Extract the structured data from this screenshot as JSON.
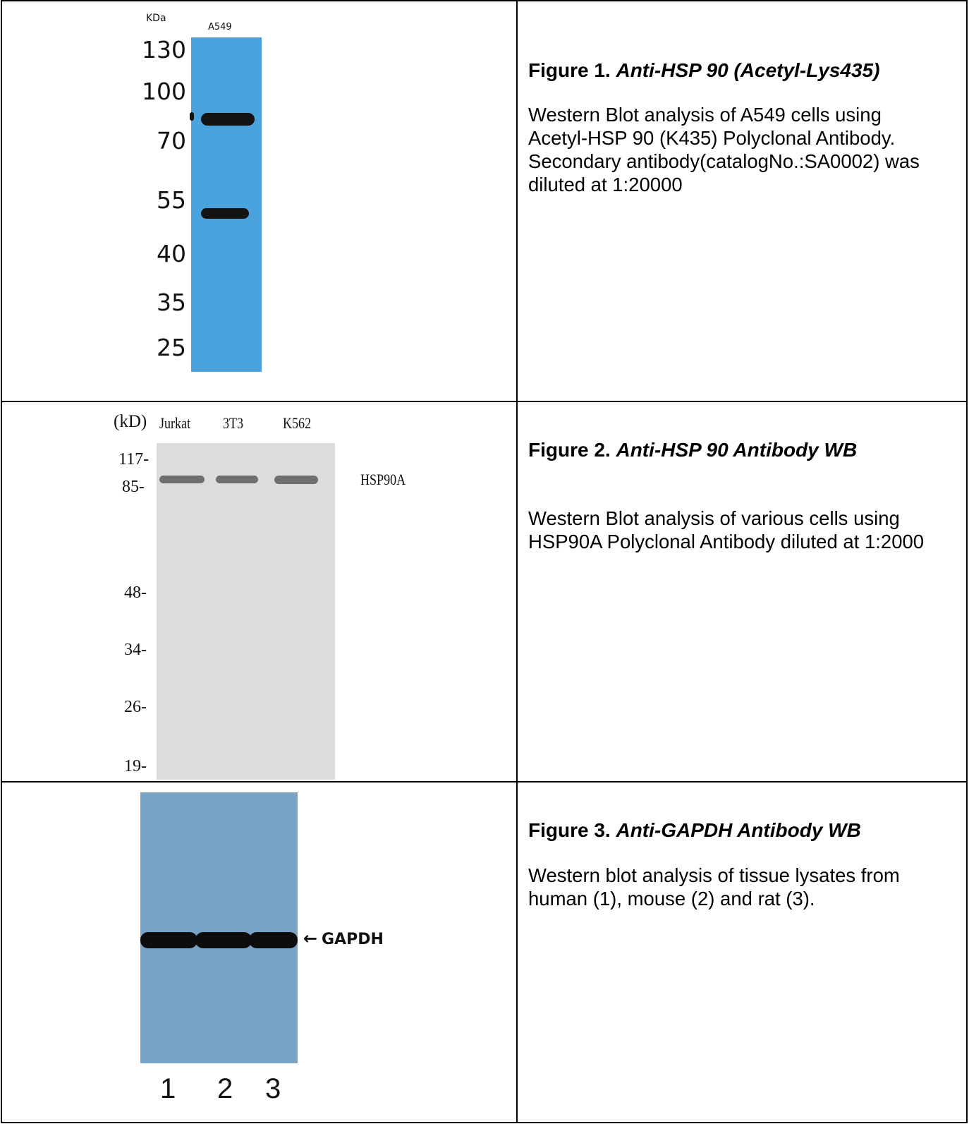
{
  "figures": [
    {
      "title_prefix": "Figure 1.",
      "title_italic": "Anti-HSP 90 (Acetyl-Lys435)",
      "description": "Western Blot analysis of A549 cells using Acetyl-HSP 90 (K435) Polyclonal Antibody. Secondary antibody(catalogNo.:SA0002) was diluted at 1:20000",
      "blot": {
        "unit_label": "KDa",
        "lane_label": "A549",
        "markers": [
          "130",
          "100",
          "70",
          "55",
          "40",
          "35",
          "25"
        ],
        "membrane_color": "#4aa3dc"
      }
    },
    {
      "title_prefix": "Figure 2.",
      "title_italic": "Anti-HSP 90 Antibody WB",
      "description": "Western Blot analysis of various cells using HSP90A Polyclonal Antibody diluted at 1:2000",
      "blot": {
        "unit_label": "(kD)",
        "lane_labels": [
          "Jurkat",
          "3T3",
          "K562"
        ],
        "markers": [
          "117-",
          "85-",
          "48-",
          "34-",
          "26-",
          "19-"
        ],
        "band_label": "HSP90A",
        "membrane_color": "#dcdcdc"
      }
    },
    {
      "title_prefix": "Figure 3.",
      "title_italic": "Anti-GAPDH Antibody WB",
      "description": "Western blot analysis of tissue lysates from human (1), mouse (2) and rat (3).",
      "blot": {
        "band_label": "GAPDH",
        "arrow_glyph": "←",
        "lane_numbers": [
          "1",
          "2",
          "3"
        ],
        "membrane_color": "#7aa3c8"
      }
    }
  ]
}
